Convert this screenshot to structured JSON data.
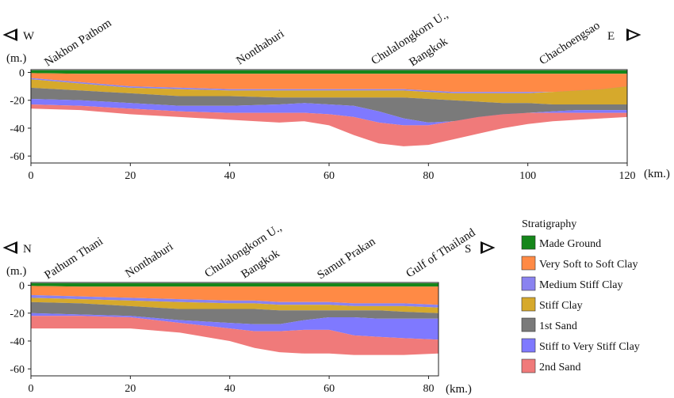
{
  "chart_data": {
    "type": "geologic-cross-section",
    "units": {
      "depth": "(m.)",
      "distance": "(km.)"
    },
    "legend": {
      "title": "Stratigraphy",
      "items": [
        {
          "label": "Made Ground",
          "color": "#15861a"
        },
        {
          "label": "Very Soft to Soft Clay",
          "color": "#ff8a45"
        },
        {
          "label": "Medium Stiff Clay",
          "color": "#8a83f0"
        },
        {
          "label": "Stiff Clay",
          "color": "#d6a92c"
        },
        {
          "label": "1st Sand",
          "color": "#7a7a7a"
        },
        {
          "label": "Stiff to Very Stiff Clay",
          "color": "#7f79ff"
        },
        {
          "label": "2nd Sand",
          "color": "#f07a7a"
        }
      ]
    },
    "sections": [
      {
        "id": "west-east",
        "dir_left": "W",
        "dir_right": "E",
        "x_ticks": [
          "0",
          "20",
          "40",
          "60",
          "80",
          "100",
          "120"
        ],
        "y_ticks": [
          "0",
          "-20",
          "-40",
          "-60"
        ],
        "xlim": [
          0,
          120
        ],
        "ylim": [
          -65,
          2
        ],
        "places": [
          {
            "name": "Nakhon Pathom",
            "km": 10
          },
          {
            "name": "Nonthaburi",
            "km": 45
          },
          {
            "name": "Chulalongkorn U.,",
            "name2": "Bangkok",
            "km": 74
          },
          {
            "name": "Chachoengsao",
            "km": 108
          }
        ],
        "x": [
          0,
          10,
          20,
          30,
          40,
          50,
          55,
          60,
          65,
          70,
          75,
          80,
          85,
          90,
          95,
          100,
          105,
          110,
          115,
          120
        ],
        "interfaces": [
          [
            1.5,
            1.5,
            1.5,
            1.5,
            1.5,
            1.5,
            1.5,
            1.5,
            1.5,
            1.5,
            1.5,
            1.5,
            1.5,
            1.5,
            1.5,
            1.5,
            1.5,
            1.5,
            1.5,
            1.5
          ],
          [
            -0.5,
            -1,
            -1,
            -1,
            -1,
            -1,
            -1,
            -1,
            -1,
            -1,
            -1,
            -1,
            -1,
            -1,
            -1,
            -1,
            -1,
            -1,
            -1,
            -1
          ],
          [
            -4,
            -7,
            -10,
            -11,
            -12,
            -12,
            -12,
            -12,
            -12,
            -12,
            -12,
            -13,
            -14,
            -14,
            -14,
            -14,
            -14,
            -14,
            -14,
            -14
          ],
          [
            -5,
            -8,
            -11,
            -12,
            -13,
            -13,
            -13,
            -13,
            -13,
            -13,
            -13,
            -14,
            -15,
            -15,
            -15,
            -15,
            -14,
            -13,
            -12,
            -10
          ],
          [
            -11,
            -13,
            -15,
            -17,
            -17,
            -18,
            -18,
            -18,
            -18,
            -18,
            -18,
            -19,
            -20,
            -21,
            -22,
            -22,
            -23,
            -23,
            -23,
            -23
          ],
          [
            -19,
            -20,
            -22,
            -24,
            -24,
            -23,
            -22,
            -23,
            -24,
            -28,
            -33,
            -36,
            -35,
            -33,
            -31,
            -29,
            -28,
            -27,
            -27,
            -27
          ],
          [
            -23,
            -24,
            -26,
            -28,
            -29,
            -29,
            -29,
            -30,
            -32,
            -36,
            -38,
            -38,
            -35,
            -32,
            -30,
            -29,
            -29,
            -29,
            -29,
            -29
          ],
          [
            -26,
            -27,
            -30,
            -32,
            -34,
            -36,
            -35,
            -38,
            -45,
            -51,
            -53,
            -52,
            -48,
            -44,
            -40,
            -37,
            -35,
            -34,
            -33,
            -32
          ]
        ]
      },
      {
        "id": "north-south",
        "dir_left": "N",
        "dir_right": "S",
        "x_ticks": [
          "0",
          "20",
          "40",
          "60",
          "80"
        ],
        "y_ticks": [
          "0",
          "-20",
          "-40",
          "-60"
        ],
        "xlim": [
          0,
          82
        ],
        "ylim": [
          -65,
          2
        ],
        "places": [
          {
            "name": "Pathum Thani",
            "km": 5
          },
          {
            "name": "Nonthaburi",
            "km": 24
          },
          {
            "name": "Chulalongkorn U.,",
            "name2": "Bangkok",
            "km": 46
          },
          {
            "name": "Samut Prakan",
            "km": 63
          },
          {
            "name": "Gulf of Thailand",
            "km": 78
          }
        ],
        "x": [
          0,
          10,
          20,
          30,
          40,
          45,
          50,
          55,
          60,
          65,
          70,
          75,
          82
        ],
        "interfaces": [
          [
            1.5,
            1.5,
            1.5,
            1.5,
            1.5,
            1.5,
            1.5,
            1.5,
            1.5,
            1.5,
            1.5,
            1.5,
            1.5
          ],
          [
            -0.5,
            -1,
            -1,
            -1,
            -1,
            -1,
            -1,
            -1,
            -1,
            -1,
            -1,
            -1,
            -1
          ],
          [
            -7,
            -8,
            -9,
            -10,
            -11,
            -11,
            -12,
            -12,
            -12,
            -13,
            -13,
            -13,
            -14
          ],
          [
            -9,
            -10,
            -11,
            -12,
            -13,
            -13,
            -14,
            -14,
            -14,
            -15,
            -15,
            -15,
            -16
          ],
          [
            -12,
            -13,
            -15,
            -17,
            -17,
            -17,
            -18,
            -18,
            -18,
            -18,
            -18,
            -19,
            -20
          ],
          [
            -20,
            -21,
            -22,
            -25,
            -27,
            -28,
            -28,
            -25,
            -23,
            -23,
            -24,
            -24,
            -24
          ],
          [
            -22,
            -22,
            -23,
            -27,
            -31,
            -33,
            -33,
            -32,
            -32,
            -36,
            -37,
            -38,
            -39
          ],
          [
            -31,
            -31,
            -31,
            -34,
            -40,
            -45,
            -48,
            -49,
            -49,
            -50,
            -50,
            -50,
            -49
          ]
        ]
      }
    ]
  }
}
